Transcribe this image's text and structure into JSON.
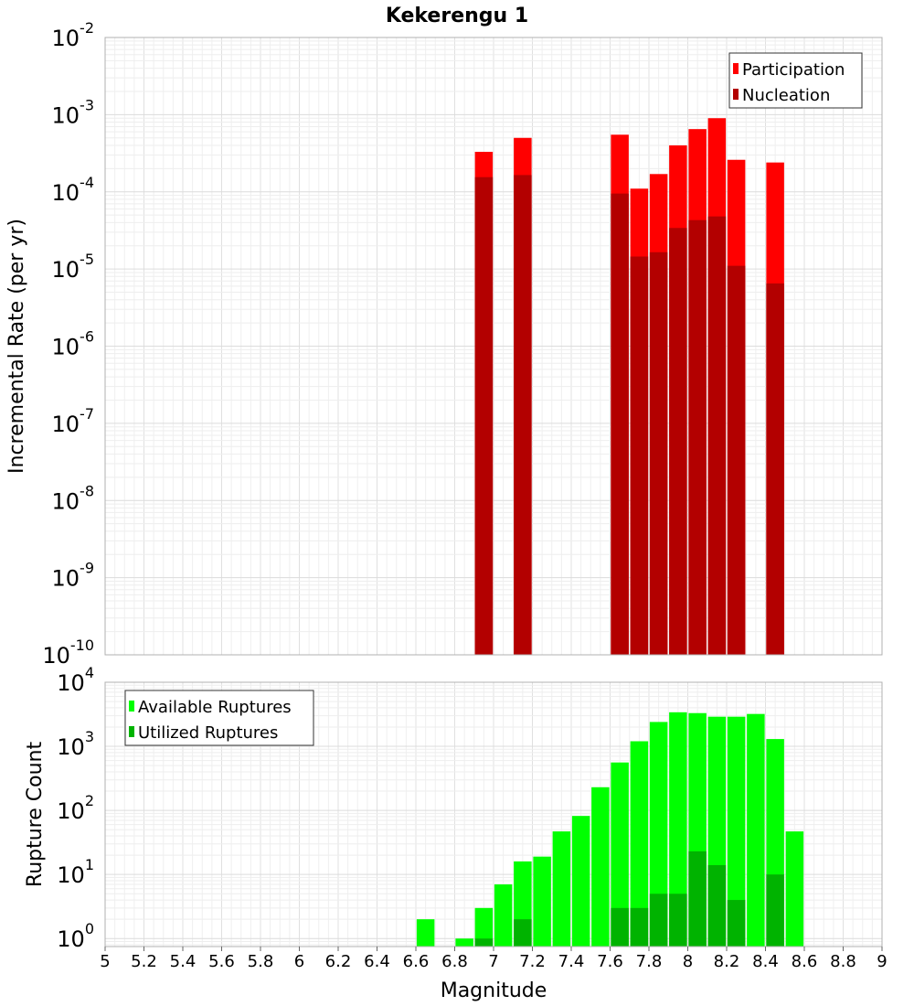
{
  "title": "Kekerengu 1",
  "colors": {
    "participation": "#ff0000",
    "nucleation": "#b30000",
    "available": "#00ff00",
    "utilized": "#00b300"
  },
  "chart_data": [
    {
      "type": "bar",
      "name": "rate-panel",
      "ylabel": "Incremental Rate (per yr)",
      "yscale": "log",
      "ylim": [
        1e-10,
        0.01
      ],
      "yticks": [
        {
          "base": "10",
          "exp": "-10",
          "value": 1e-10
        },
        {
          "base": "10",
          "exp": "-9",
          "value": 1e-09
        },
        {
          "base": "10",
          "exp": "-8",
          "value": 1e-08
        },
        {
          "base": "10",
          "exp": "-7",
          "value": 1e-07
        },
        {
          "base": "10",
          "exp": "-6",
          "value": 1e-06
        },
        {
          "base": "10",
          "exp": "-5",
          "value": 1e-05
        },
        {
          "base": "10",
          "exp": "-4",
          "value": 0.0001
        },
        {
          "base": "10",
          "exp": "-3",
          "value": 0.001
        },
        {
          "base": "10",
          "exp": "-2",
          "value": 0.01
        }
      ],
      "xlim": [
        5,
        9
      ],
      "grid": true,
      "legend_position": "top-right",
      "x": [
        6.95,
        7.15,
        7.65,
        7.75,
        7.85,
        7.95,
        8.05,
        8.15,
        8.25,
        8.45
      ],
      "series": [
        {
          "name": "Participation",
          "values": [
            0.00033,
            0.0005,
            0.00055,
            0.00011,
            0.00017,
            0.0004,
            0.00065,
            0.0009,
            0.00026,
            0.00024
          ]
        },
        {
          "name": "Nucleation",
          "values": [
            0.000155,
            0.000165,
            9.5e-05,
            1.45e-05,
            1.65e-05,
            3.4e-05,
            4.3e-05,
            4.8e-05,
            1.1e-05,
            6.5e-06
          ]
        }
      ]
    },
    {
      "type": "bar",
      "name": "count-panel",
      "ylabel": "Rupture Count",
      "xlabel": "Magnitude",
      "yscale": "log",
      "ylim": [
        0.75,
        10000
      ],
      "yticks": [
        {
          "base": "10",
          "exp": "0",
          "value": 1
        },
        {
          "base": "10",
          "exp": "1",
          "value": 10
        },
        {
          "base": "10",
          "exp": "2",
          "value": 100
        },
        {
          "base": "10",
          "exp": "3",
          "value": 1000
        },
        {
          "base": "10",
          "exp": "4",
          "value": 10000
        }
      ],
      "xlim": [
        5,
        9
      ],
      "xticks": [
        "5",
        "5.2",
        "5.4",
        "5.6",
        "5.8",
        "6",
        "6.2",
        "6.4",
        "6.6",
        "6.8",
        "7",
        "7.2",
        "7.4",
        "7.6",
        "7.8",
        "8",
        "8.2",
        "8.4",
        "8.6",
        "8.8",
        "9"
      ],
      "grid": true,
      "legend_position": "top-left",
      "x": [
        6.65,
        6.85,
        6.95,
        7.05,
        7.15,
        7.25,
        7.35,
        7.45,
        7.55,
        7.65,
        7.75,
        7.85,
        7.95,
        8.05,
        8.15,
        8.25,
        8.35,
        8.45,
        8.55
      ],
      "series": [
        {
          "name": "Available Ruptures",
          "values": [
            2,
            1,
            3,
            7,
            16,
            19,
            47,
            82,
            230,
            560,
            1200,
            2400,
            3400,
            3300,
            2900,
            2900,
            3200,
            1300,
            47
          ]
        },
        {
          "name": "Utilized Ruptures",
          "values": [
            0,
            0,
            1,
            0,
            2,
            0,
            0,
            0,
            0,
            3,
            3,
            5,
            5,
            23,
            14,
            4,
            0,
            10,
            0
          ]
        }
      ]
    }
  ]
}
